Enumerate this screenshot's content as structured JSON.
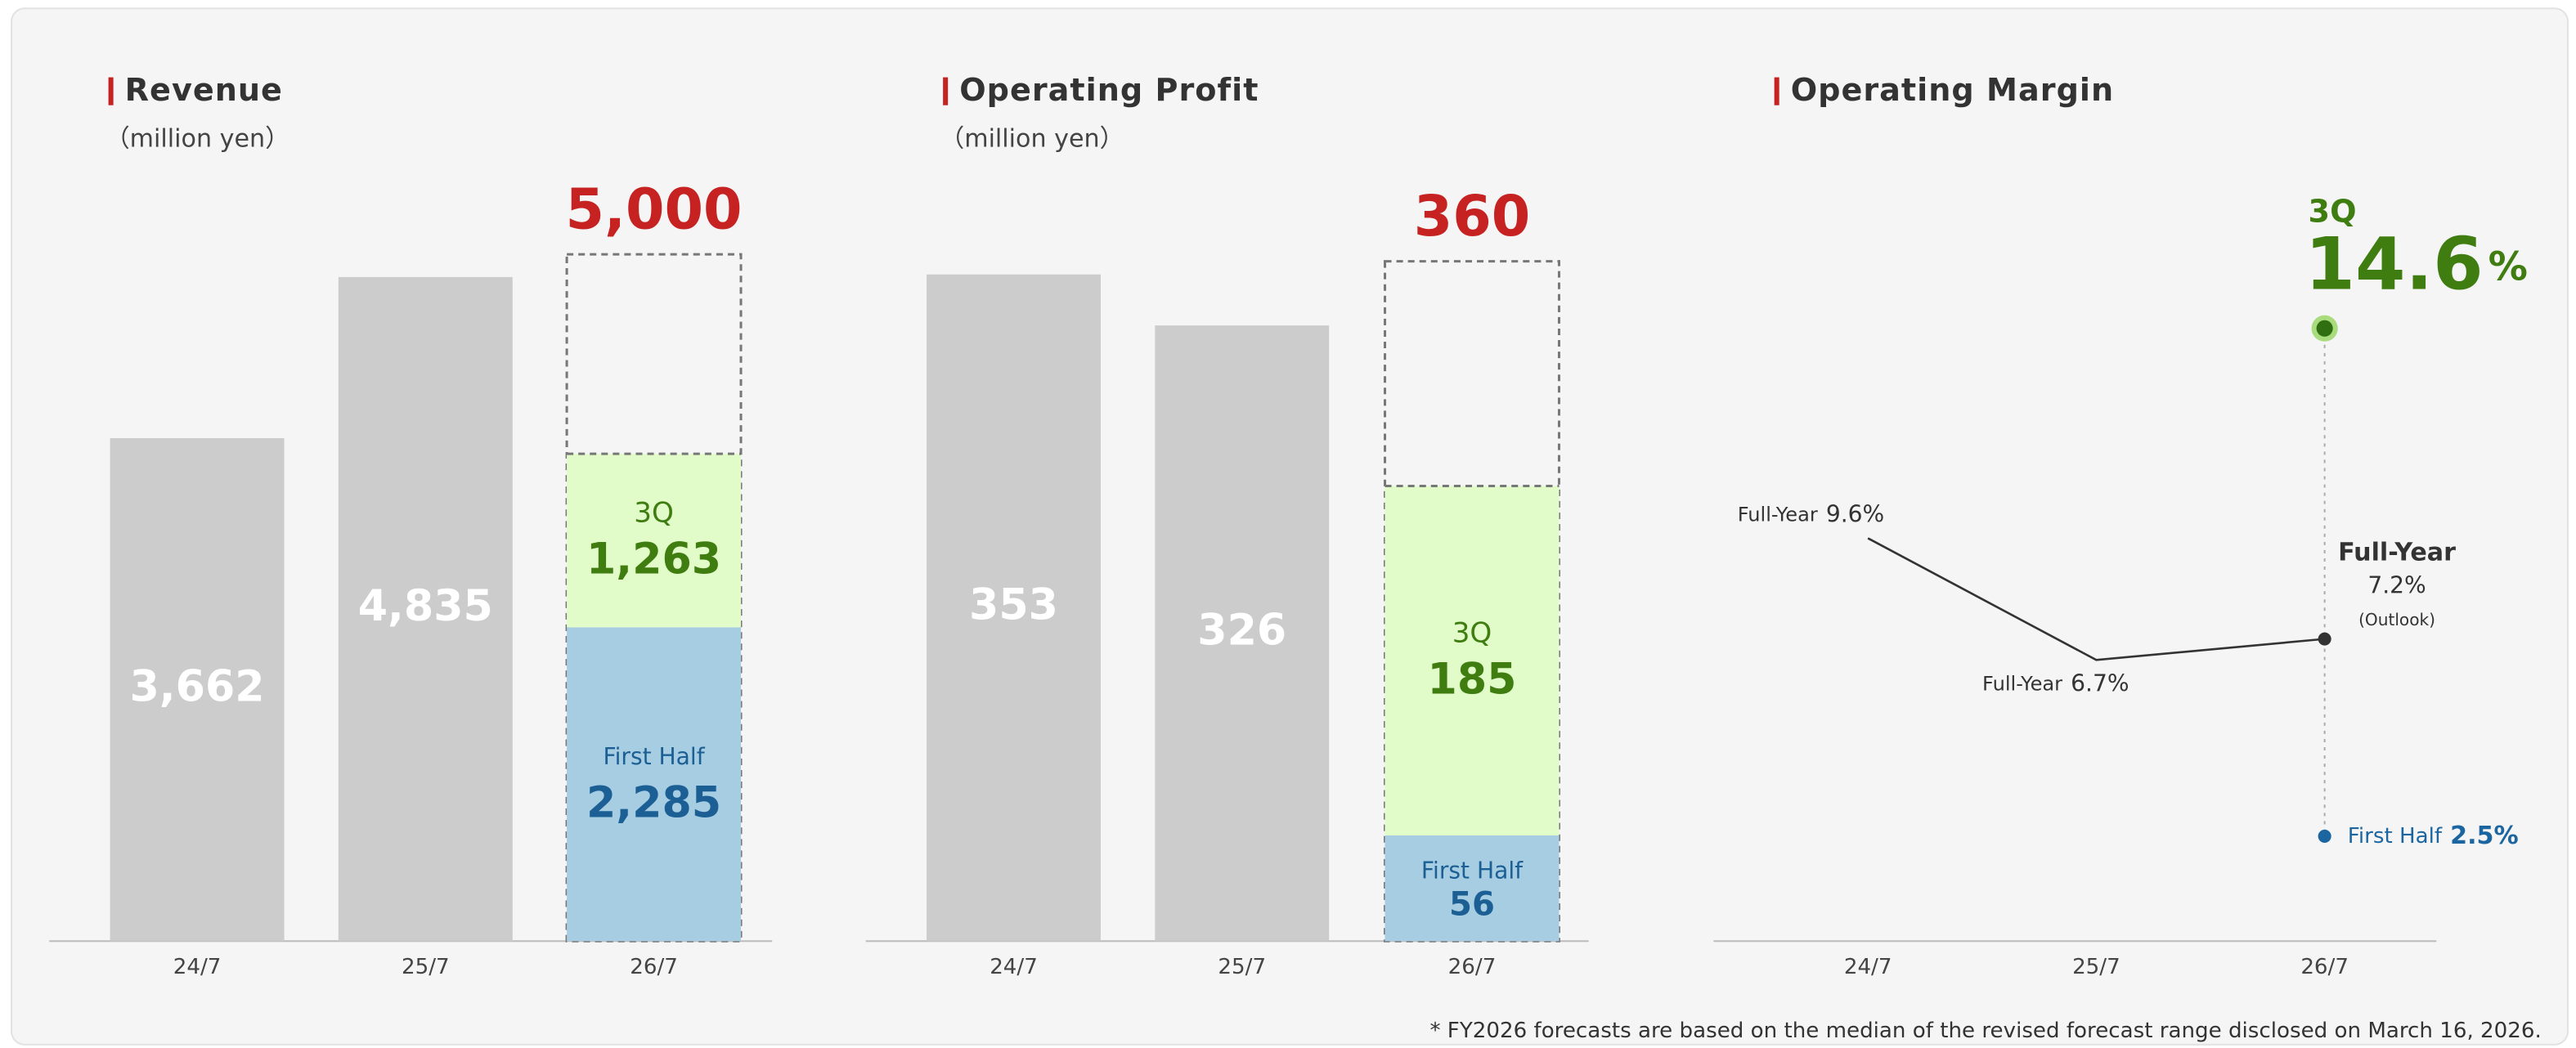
{
  "chart_data": [
    {
      "type": "bar",
      "title": "Revenue",
      "subtitle": "（million yen）",
      "categories": [
        "24/7",
        "25/7",
        "26/7"
      ],
      "ylim": [
        0,
        5500
      ],
      "actual": {
        "color": "#cccccc",
        "values": [
          3662,
          4835,
          null
        ],
        "value_labels": [
          "3,662",
          "4,835",
          null
        ]
      },
      "series": [
        {
          "name": "First Half",
          "color": "#a6cde2",
          "label_color": "#1b5f94",
          "values": [
            null,
            null,
            2285
          ],
          "value_labels": [
            null,
            null,
            "2,285"
          ]
        },
        {
          "name": "3Q",
          "color": "#e1fcc9",
          "label_color": "#3f7d10",
          "values": [
            null,
            null,
            1263
          ],
          "value_labels": [
            null,
            null,
            "1,263"
          ]
        }
      ],
      "forecast": {
        "color": "#c62222",
        "values": [
          null,
          null,
          5000
        ],
        "value_labels": [
          null,
          null,
          "5,000"
        ]
      }
    },
    {
      "type": "bar",
      "title": "Operating Profit",
      "subtitle": "（million yen）",
      "categories": [
        "24/7",
        "25/7",
        "26/7"
      ],
      "ylim": [
        0,
        400
      ],
      "actual": {
        "color": "#cccccc",
        "values": [
          353,
          326,
          null
        ]
      },
      "series": [
        {
          "name": "First Half",
          "color": "#a6cde2",
          "label_color": "#1b5f94",
          "values": [
            null,
            null,
            56
          ]
        },
        {
          "name": "3Q",
          "color": "#e1fcc9",
          "label_color": "#3f7d10",
          "values": [
            null,
            null,
            185
          ]
        }
      ],
      "forecast": {
        "color": "#c62222",
        "values": [
          null,
          null,
          360
        ]
      }
    },
    {
      "type": "line",
      "title": "Operating Margin",
      "categories": [
        "24/7",
        "25/7",
        "26/7"
      ],
      "ylim": [
        0,
        18
      ],
      "series": [
        {
          "name": "Full-Year",
          "color": "#333333",
          "values": [
            9.6,
            6.7,
            7.2
          ],
          "value_labels": [
            "9.6%",
            "6.7%",
            "7.2%"
          ],
          "note": "(Outlook)"
        },
        {
          "name": "3Q",
          "color": "#3f7d10",
          "values": [
            null,
            null,
            14.6
          ],
          "unit": "%"
        },
        {
          "name": "First Half",
          "color": "#1b66a0",
          "values": [
            null,
            null,
            2.5
          ],
          "value_labels": [
            null,
            null,
            "2.5%"
          ]
        }
      ]
    }
  ],
  "footnote": "* FY2026 forecasts are based on the median of the revised forecast range disclosed on March 16, 2026."
}
